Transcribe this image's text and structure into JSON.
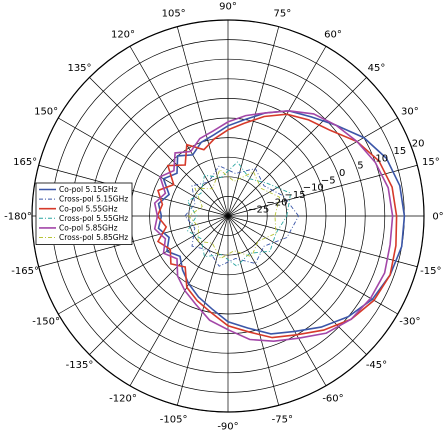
{
  "chart_data": {
    "type": "polar-line",
    "title": "",
    "angle_unit": "deg",
    "angle_ticks": [
      0,
      15,
      30,
      45,
      60,
      75,
      90,
      105,
      120,
      135,
      150,
      165,
      180,
      -165,
      -150,
      -135,
      -120,
      -105,
      -90,
      -75,
      -60,
      -45,
      -30,
      -15
    ],
    "angle_tick_labels": [
      "0°",
      "15°",
      "30°",
      "45°",
      "60°",
      "75°",
      "90°",
      "105°",
      "120°",
      "135°",
      "150°",
      "165°",
      "-180°",
      "-165°",
      "-150°",
      "-135°",
      "-120°",
      "-105°",
      "-90°",
      "-75°",
      "-60°",
      "-45°",
      "-30°",
      "-15°"
    ],
    "radial_range": [
      -30,
      20
    ],
    "radial_ticks": [
      -25,
      -20,
      -15,
      -10,
      -5,
      0,
      5,
      10,
      15,
      20
    ],
    "radial_tick_labels": [
      "−25",
      "−20",
      "−15",
      "−10",
      "−5",
      "0",
      "5",
      "10",
      "15",
      "20"
    ],
    "grid": true,
    "legend_position": "left",
    "series": [
      {
        "name": "Co-pol 5.15GHz",
        "color": "#3b56a8",
        "dash": "solid",
        "points": [
          [
            0,
            15
          ],
          [
            10,
            14.5
          ],
          [
            20,
            13
          ],
          [
            30,
            10
          ],
          [
            40,
            6
          ],
          [
            50,
            3
          ],
          [
            60,
            1
          ],
          [
            70,
            -2
          ],
          [
            80,
            -5
          ],
          [
            90,
            -7
          ],
          [
            100,
            -9
          ],
          [
            110,
            -10
          ],
          [
            120,
            -12
          ],
          [
            130,
            -10
          ],
          [
            140,
            -13
          ],
          [
            150,
            -11
          ],
          [
            160,
            -14
          ],
          [
            170,
            -12
          ],
          [
            180,
            -13
          ],
          [
            190,
            -12
          ],
          [
            200,
            -14
          ],
          [
            210,
            -12
          ],
          [
            220,
            -14
          ],
          [
            230,
            -12
          ],
          [
            240,
            -10
          ],
          [
            250,
            -8
          ],
          [
            260,
            -6
          ],
          [
            270,
            -3
          ],
          [
            280,
            -1
          ],
          [
            290,
            2
          ],
          [
            300,
            4
          ],
          [
            310,
            7
          ],
          [
            320,
            10
          ],
          [
            330,
            12.5
          ],
          [
            340,
            14
          ],
          [
            350,
            15
          ]
        ]
      },
      {
        "name": "Cross-pol 5.15GHz",
        "color": "#3b56a8",
        "dash": "dashdot",
        "points": [
          [
            0,
            -12
          ],
          [
            20,
            -15
          ],
          [
            40,
            -18
          ],
          [
            60,
            -16
          ],
          [
            80,
            -19
          ],
          [
            100,
            -17
          ],
          [
            120,
            -20
          ],
          [
            140,
            -18
          ],
          [
            160,
            -21
          ],
          [
            180,
            -19
          ],
          [
            200,
            -21
          ],
          [
            220,
            -18
          ],
          [
            240,
            -20
          ],
          [
            260,
            -17
          ],
          [
            280,
            -19
          ],
          [
            300,
            -16
          ],
          [
            320,
            -18
          ],
          [
            340,
            -14
          ]
        ]
      },
      {
        "name": "Co-pol 5.55GHz",
        "color": "#d63a2a",
        "dash": "solid",
        "points": [
          [
            0,
            13
          ],
          [
            10,
            12.5
          ],
          [
            20,
            11
          ],
          [
            30,
            8
          ],
          [
            40,
            4
          ],
          [
            50,
            2
          ],
          [
            60,
            0
          ],
          [
            70,
            -3
          ],
          [
            80,
            -6
          ],
          [
            90,
            -8
          ],
          [
            100,
            -10
          ],
          [
            110,
            -12
          ],
          [
            120,
            -9
          ],
          [
            130,
            -13
          ],
          [
            140,
            -10
          ],
          [
            150,
            -14
          ],
          [
            160,
            -11
          ],
          [
            170,
            -13
          ],
          [
            180,
            -12
          ],
          [
            190,
            -14
          ],
          [
            200,
            -11
          ],
          [
            210,
            -13
          ],
          [
            220,
            -11
          ],
          [
            230,
            -13
          ],
          [
            240,
            -9
          ],
          [
            250,
            -7
          ],
          [
            260,
            -5
          ],
          [
            270,
            -2
          ],
          [
            280,
            0
          ],
          [
            290,
            3
          ],
          [
            300,
            5
          ],
          [
            310,
            8
          ],
          [
            320,
            11
          ],
          [
            330,
            13
          ],
          [
            340,
            14
          ],
          [
            350,
            13.5
          ]
        ]
      },
      {
        "name": "Cross-pol 5.55GHz",
        "color": "#2aa6a0",
        "dash": "dashdot",
        "points": [
          [
            0,
            -15
          ],
          [
            20,
            -13
          ],
          [
            40,
            -17
          ],
          [
            60,
            -19
          ],
          [
            80,
            -16
          ],
          [
            100,
            -20
          ],
          [
            120,
            -18
          ],
          [
            140,
            -21
          ],
          [
            160,
            -19
          ],
          [
            180,
            -22
          ],
          [
            200,
            -19
          ],
          [
            220,
            -21
          ],
          [
            240,
            -18
          ],
          [
            260,
            -20
          ],
          [
            280,
            -17
          ],
          [
            300,
            -19
          ],
          [
            320,
            -16
          ],
          [
            340,
            -17
          ]
        ]
      },
      {
        "name": "Co-pol 5.85GHz",
        "color": "#a347a8",
        "dash": "solid",
        "points": [
          [
            0,
            12
          ],
          [
            10,
            11.5
          ],
          [
            20,
            10
          ],
          [
            30,
            8
          ],
          [
            40,
            6
          ],
          [
            50,
            4
          ],
          [
            60,
            1
          ],
          [
            70,
            -2
          ],
          [
            80,
            -4
          ],
          [
            90,
            -6
          ],
          [
            100,
            -8
          ],
          [
            110,
            -9
          ],
          [
            120,
            -11
          ],
          [
            130,
            -9
          ],
          [
            140,
            -12
          ],
          [
            150,
            -10
          ],
          [
            160,
            -13
          ],
          [
            170,
            -11
          ],
          [
            180,
            -12
          ],
          [
            190,
            -11
          ],
          [
            200,
            -13
          ],
          [
            210,
            -11
          ],
          [
            220,
            -13
          ],
          [
            230,
            -10
          ],
          [
            240,
            -8
          ],
          [
            250,
            -6
          ],
          [
            260,
            -3
          ],
          [
            270,
            -1
          ],
          [
            280,
            2
          ],
          [
            290,
            4
          ],
          [
            300,
            6
          ],
          [
            310,
            9
          ],
          [
            320,
            11
          ],
          [
            330,
            12
          ],
          [
            340,
            12.5
          ],
          [
            350,
            12
          ]
        ]
      },
      {
        "name": "Cross-pol 5.85GHz",
        "color": "#b8c43a",
        "dash": "dashdot",
        "points": [
          [
            0,
            -18
          ],
          [
            20,
            -16
          ],
          [
            40,
            -19
          ],
          [
            60,
            -17
          ],
          [
            80,
            -21
          ],
          [
            100,
            -18
          ],
          [
            120,
            -22
          ],
          [
            140,
            -19
          ],
          [
            160,
            -23
          ],
          [
            180,
            -20
          ],
          [
            200,
            -22
          ],
          [
            220,
            -20
          ],
          [
            240,
            -22
          ],
          [
            260,
            -19
          ],
          [
            280,
            -21
          ],
          [
            300,
            -18
          ],
          [
            320,
            -20
          ],
          [
            340,
            -17
          ]
        ]
      }
    ]
  }
}
